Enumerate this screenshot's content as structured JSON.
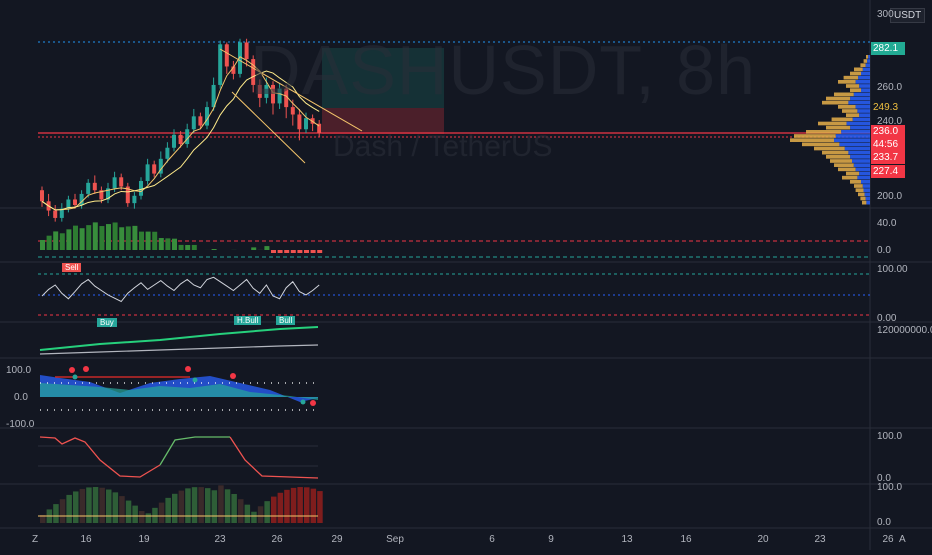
{
  "watermark": {
    "symbol": "DASHUSDT, 8h",
    "description": "Dash / TetherUS"
  },
  "currency_badge": "USDT",
  "price_axis": {
    "ticks": [
      "300",
      "260.0",
      "240.0",
      "200.0"
    ]
  },
  "price_tags": [
    {
      "value": "282.1",
      "color": "#22ab94"
    },
    {
      "value": "249.3",
      "color": "#131722",
      "text": "#f0c040"
    },
    {
      "value": "236.0",
      "color": "#f23645"
    },
    {
      "value": "44:56",
      "color": "#f23645"
    },
    {
      "value": "233.7",
      "color": "#f23645"
    },
    {
      "value": "227.4",
      "color": "#f23645"
    }
  ],
  "pane_axes": {
    "macd": [
      "40.0",
      "0.0"
    ],
    "rsi": [
      "100.00",
      "0.00"
    ],
    "obv": [
      "120000000.0"
    ],
    "wt": [
      "100.0",
      "0.0",
      "-100.0"
    ],
    "stoch": [
      "100.0",
      "0.0"
    ],
    "vol": [
      "100.0",
      "0.0"
    ]
  },
  "rsi_labels": {
    "sell": "Sell",
    "buy1": "Buy",
    "buy2": "H.Bull",
    "buy3": "Bull"
  },
  "time_axis": [
    "16",
    "19",
    "23",
    "26",
    "29",
    "Sep",
    "6",
    "9",
    "13",
    "16",
    "20",
    "23",
    "26"
  ],
  "corner_left": "Z",
  "corner_right": "A",
  "colors": {
    "bg": "#131722",
    "up": "#26a69a",
    "down": "#ef5350",
    "red": "#f23645",
    "green": "#22ab94",
    "gold": "#e8b04a",
    "blue": "#2962ff"
  },
  "candles": [
    [
      205,
      199,
      207,
      196
    ],
    [
      199,
      194,
      203,
      191
    ],
    [
      194,
      190,
      197,
      188
    ],
    [
      190,
      195,
      198,
      188
    ],
    [
      195,
      200,
      202,
      193
    ],
    [
      200,
      197,
      203,
      195
    ],
    [
      197,
      203,
      205,
      195
    ],
    [
      203,
      209,
      211,
      201
    ],
    [
      209,
      205,
      213,
      203
    ],
    [
      205,
      200,
      207,
      198
    ],
    [
      200,
      206,
      209,
      198
    ],
    [
      206,
      212,
      215,
      204
    ],
    [
      212,
      207,
      214,
      205
    ],
    [
      207,
      198,
      209,
      196
    ],
    [
      198,
      202,
      204,
      195
    ],
    [
      202,
      210,
      212,
      200
    ],
    [
      210,
      219,
      222,
      208
    ],
    [
      219,
      214,
      221,
      212
    ],
    [
      214,
      222,
      226,
      212
    ],
    [
      222,
      228,
      231,
      220
    ],
    [
      228,
      235,
      238,
      226
    ],
    [
      235,
      230,
      237,
      228
    ],
    [
      230,
      238,
      241,
      228
    ],
    [
      238,
      245,
      249,
      236
    ],
    [
      245,
      240,
      247,
      238
    ],
    [
      240,
      250,
      253,
      238
    ],
    [
      250,
      262,
      266,
      248
    ],
    [
      262,
      284,
      286,
      260
    ],
    [
      284,
      272,
      285,
      268
    ],
    [
      272,
      268,
      275,
      265
    ],
    [
      268,
      285,
      287,
      266
    ],
    [
      285,
      276,
      287,
      272
    ],
    [
      276,
      262,
      278,
      258
    ],
    [
      262,
      255,
      265,
      250
    ],
    [
      255,
      262,
      266,
      252
    ],
    [
      262,
      252,
      264,
      246
    ],
    [
      252,
      260,
      263,
      249
    ],
    [
      260,
      250,
      262,
      244
    ],
    [
      250,
      246,
      254,
      240
    ],
    [
      246,
      238,
      249,
      232
    ],
    [
      238,
      244,
      247,
      236
    ],
    [
      244,
      241,
      246,
      237
    ],
    [
      241,
      236,
      243,
      234
    ]
  ],
  "volume_profile": [
    0.05,
    0.08,
    0.12,
    0.2,
    0.25,
    0.33,
    0.4,
    0.3,
    0.25,
    0.45,
    0.55,
    0.6,
    0.4,
    0.35,
    0.3,
    0.48,
    0.65,
    0.55,
    0.8,
    0.95,
    1.0,
    0.85,
    0.7,
    0.6,
    0.55,
    0.5,
    0.45,
    0.4,
    0.3,
    0.35,
    0.25,
    0.2,
    0.18,
    0.15,
    0.12,
    0.1
  ]
}
